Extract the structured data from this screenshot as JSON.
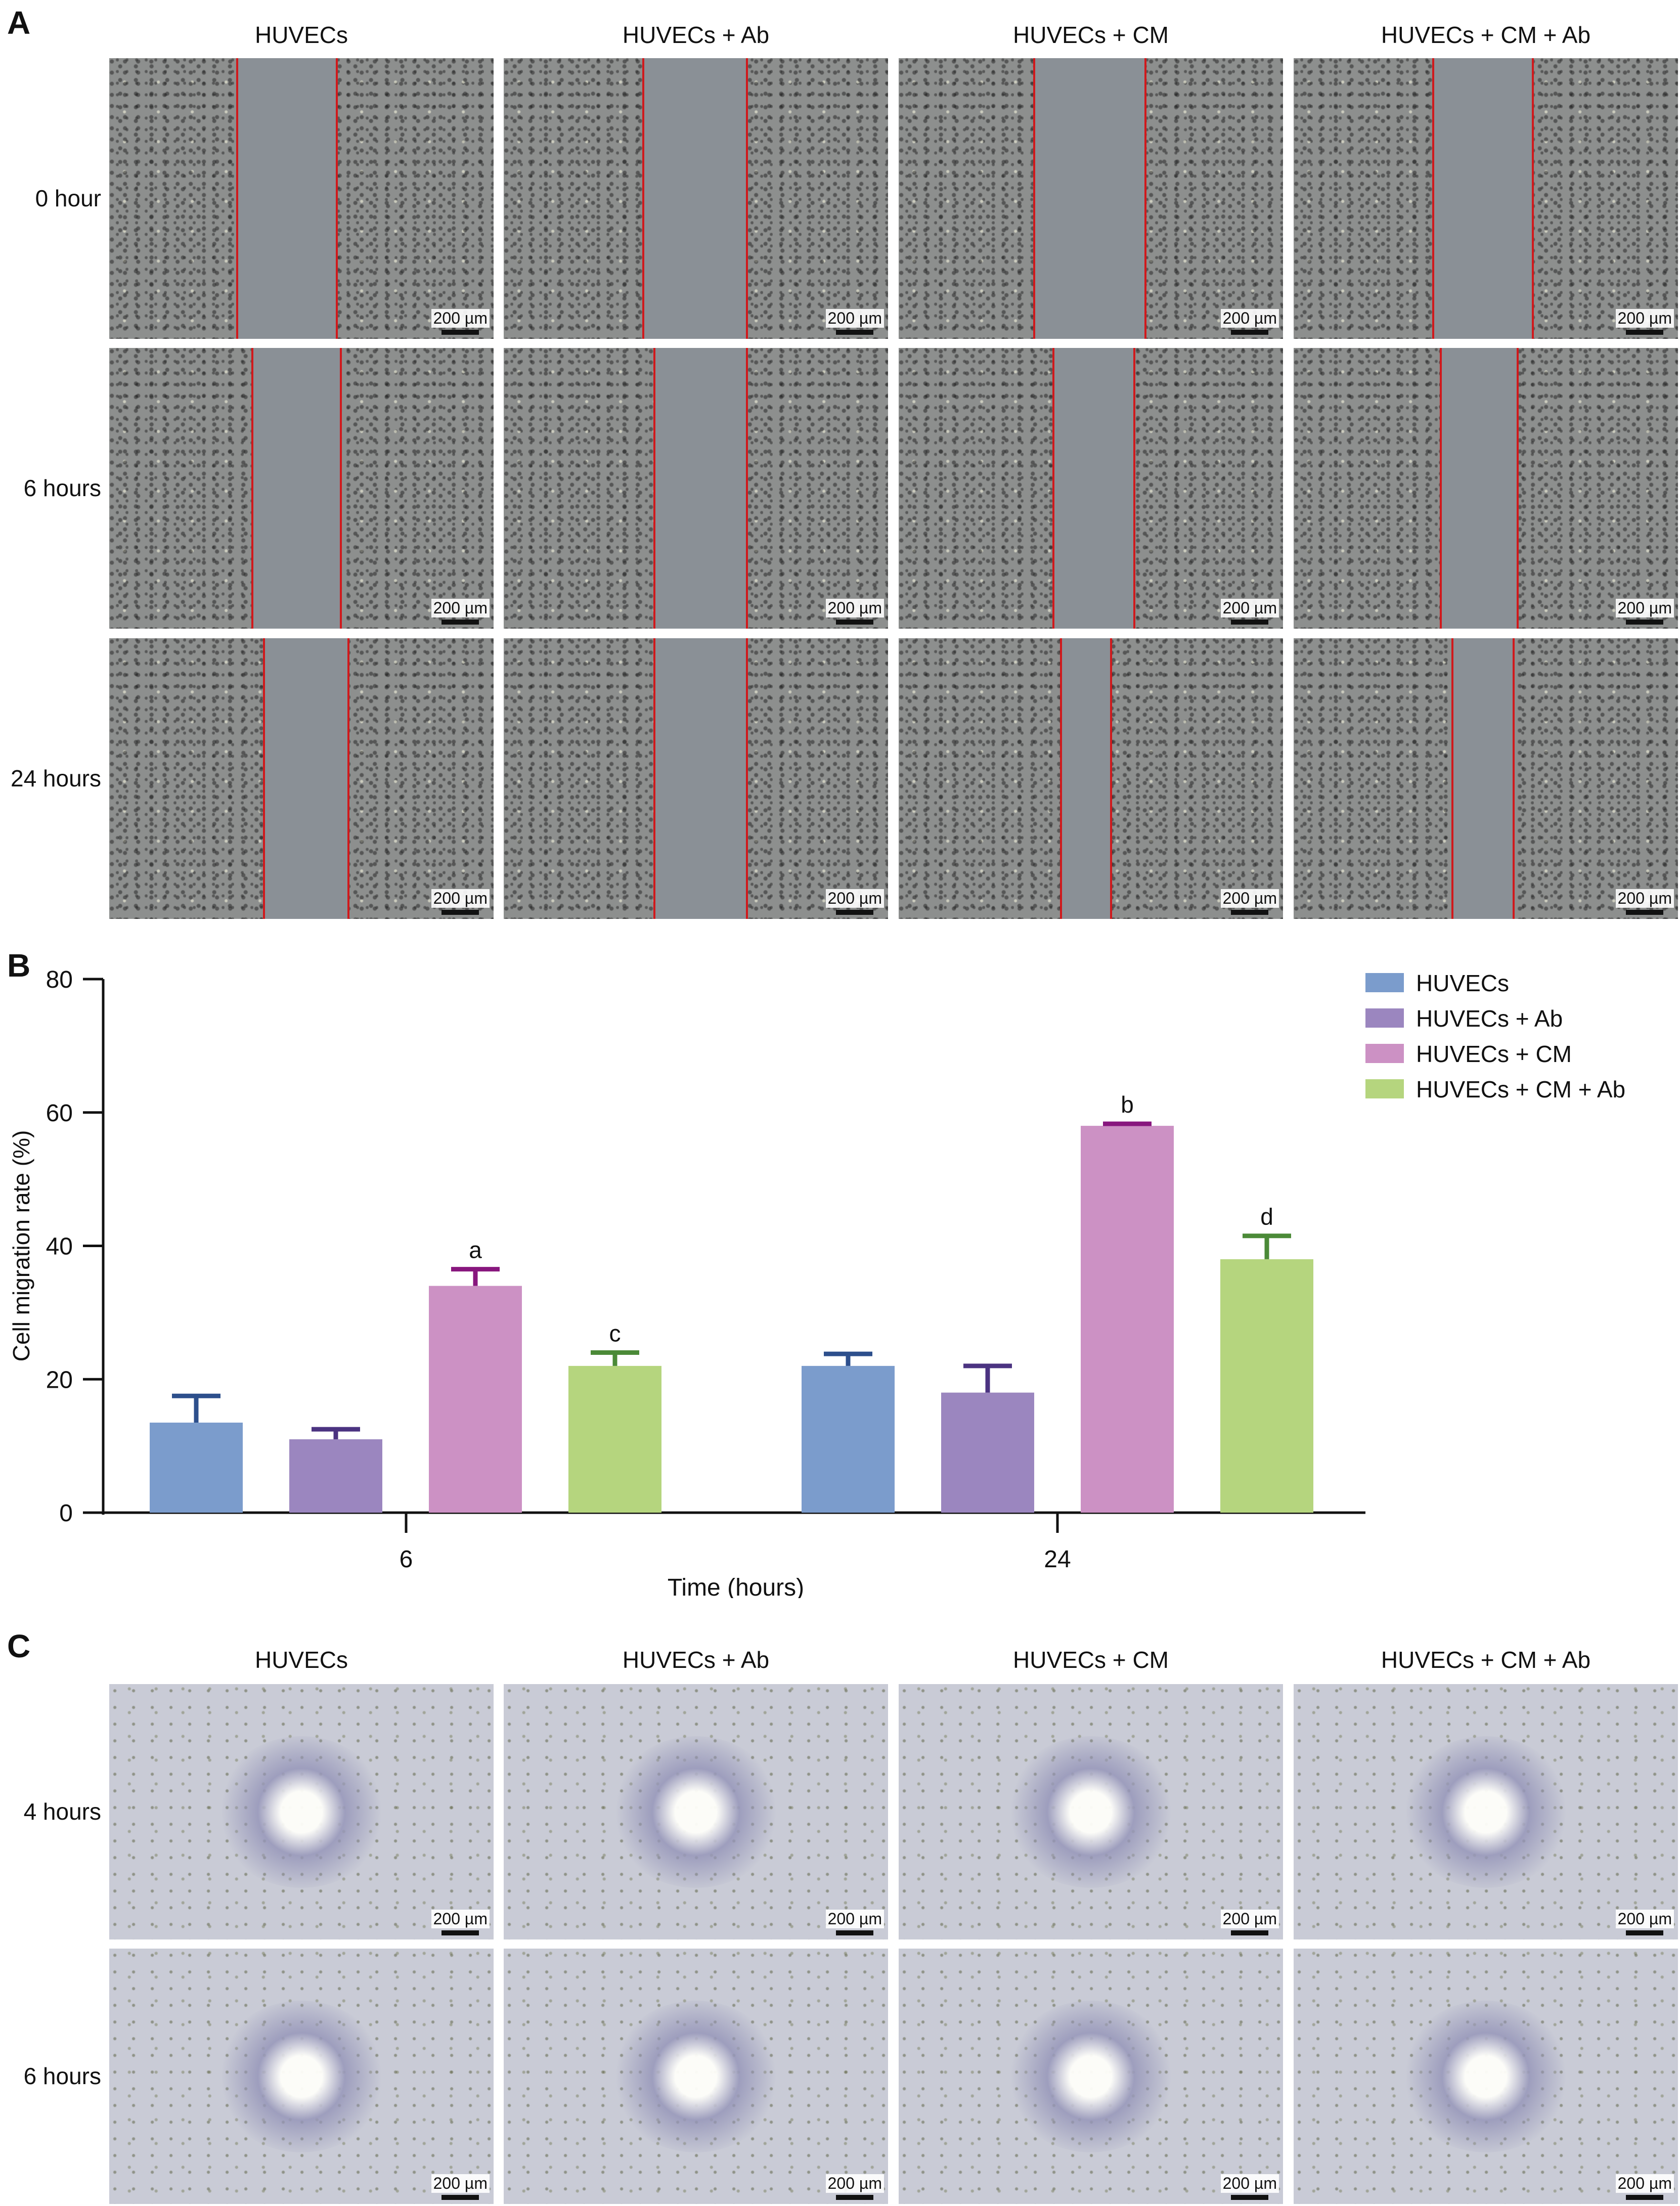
{
  "panel_a": {
    "letter": "A",
    "columns": [
      "HUVECs",
      "HUVECs + Ab",
      "HUVECs + CM",
      "HUVECs + CM + Ab"
    ],
    "rows": [
      "0 hour",
      "6 hours",
      "24 hours"
    ],
    "scale_label": "200 µm"
  },
  "panel_b": {
    "letter": "B"
  },
  "panel_c": {
    "letter": "C",
    "columns": [
      "HUVECs",
      "HUVECs + Ab",
      "HUVECs + CM",
      "HUVECs + CM + Ab"
    ],
    "rows": [
      "4 hours",
      "6 hours"
    ],
    "scale_label": "200 µm"
  },
  "chart_data": {
    "type": "bar",
    "xlabel": "Time (hours)",
    "ylabel": "Cell migration rate (%)",
    "ylim": [
      0,
      80
    ],
    "yticks": [
      0,
      20,
      40,
      60,
      80
    ],
    "categories": [
      "6",
      "24"
    ],
    "legend_position": "top-right",
    "series": [
      {
        "name": "HUVECs",
        "color": "#7b9ccc",
        "values": [
          13.5,
          22
        ],
        "error": [
          4,
          1.8
        ],
        "labels": [
          "",
          ""
        ]
      },
      {
        "name": "HUVECs + Ab",
        "color": "#9b86bf",
        "values": [
          11,
          18
        ],
        "error": [
          1.5,
          4
        ],
        "labels": [
          "",
          ""
        ]
      },
      {
        "name": "HUVECs + CM",
        "color": "#cc91c4",
        "values": [
          34,
          58
        ],
        "error": [
          2.5,
          0.3
        ],
        "labels": [
          "a",
          "b"
        ]
      },
      {
        "name": "HUVECs + CM + Ab",
        "color": "#b5d57e",
        "values": [
          22,
          38
        ],
        "error": [
          2,
          3.5
        ],
        "labels": [
          "c",
          "d"
        ]
      }
    ],
    "error_colors": [
      "#2d4f8c",
      "#4b3381",
      "#88177e",
      "#4b8a38"
    ]
  }
}
